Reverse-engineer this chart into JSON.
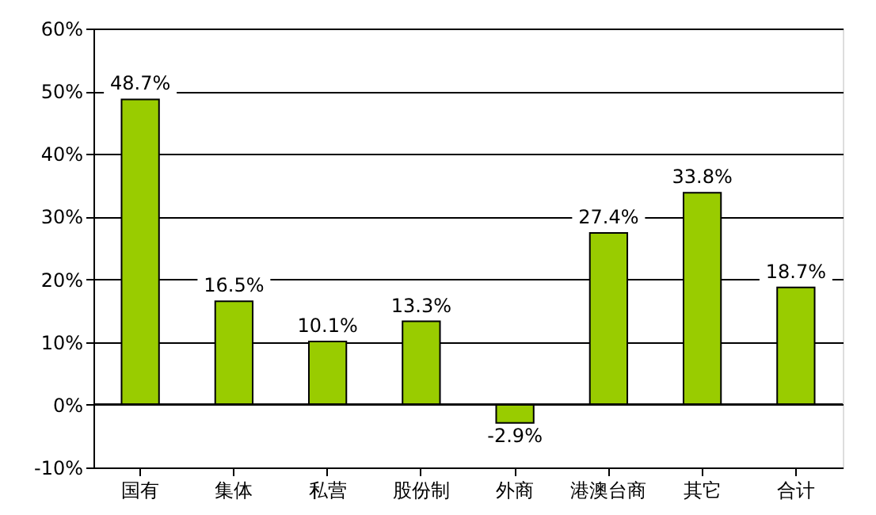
{
  "chart_data": {
    "type": "bar",
    "categories": [
      "国有",
      "集体",
      "私营",
      "股份制",
      "外商",
      "港澳台商",
      "其它",
      "合计"
    ],
    "values": [
      48.7,
      16.5,
      10.1,
      13.3,
      -2.9,
      27.4,
      33.8,
      18.7
    ],
    "value_labels": [
      "48.7%",
      "16.5%",
      "10.1%",
      "13.3%",
      "-2.9%",
      "27.4%",
      "33.8%",
      "18.7%"
    ],
    "color": "#99cc00",
    "ylim": [
      -10,
      60
    ],
    "yticks": [
      {
        "value": -10,
        "label": "-10%"
      },
      {
        "value": 0,
        "label": "0%"
      },
      {
        "value": 10,
        "label": "10%"
      },
      {
        "value": 20,
        "label": "20%"
      },
      {
        "value": 30,
        "label": "30%"
      },
      {
        "value": 40,
        "label": "40%"
      },
      {
        "value": 50,
        "label": "50%"
      },
      {
        "value": 60,
        "label": "60%"
      }
    ],
    "grid": "y"
  }
}
